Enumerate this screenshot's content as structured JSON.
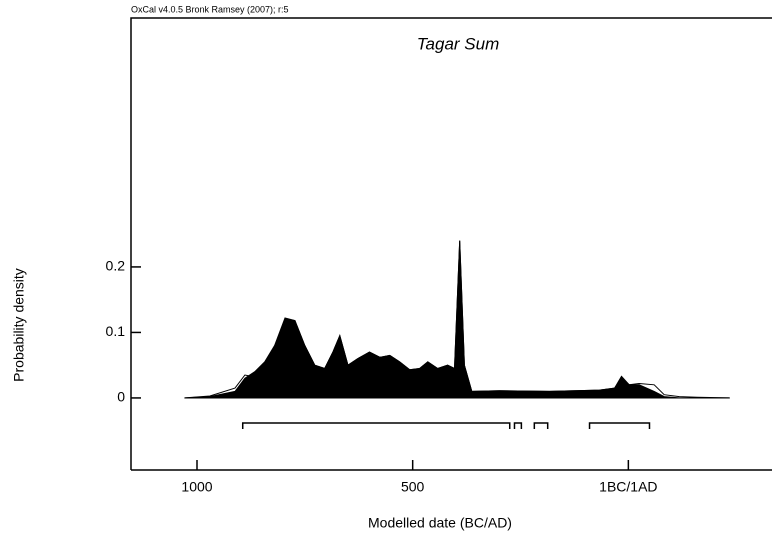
{
  "chart_data": {
    "type": "area",
    "header": "OxCal v4.0.5 Bronk Ramsey (2007); r:5",
    "title": "Tagar Sum",
    "x_label": "Modelled date (BC/AD)",
    "y_label": "Probability density",
    "x": [
      1028,
      970,
      912,
      889,
      866,
      843,
      820,
      796,
      773,
      750,
      727,
      704,
      685,
      669,
      650,
      627,
      600,
      576,
      553,
      530,
      507,
      484,
      465,
      442,
      419,
      403,
      391,
      380,
      363,
      299,
      183,
      67,
      32,
      16,
      -2,
      -25,
      -60,
      -83,
      -118,
      -160,
      -234
    ],
    "series": [
      {
        "style": "outline",
        "color": "#000000",
        "values": [
          0,
          0.003,
          0.015,
          0.035,
          0.032,
          0.05,
          0.078,
          0.12,
          0.118,
          0.08,
          0.05,
          0.045,
          0.07,
          0.095,
          0.05,
          0.06,
          0.07,
          0.062,
          0.065,
          0.055,
          0.043,
          0.045,
          0.055,
          0.045,
          0.05,
          0.045,
          0.24,
          0.05,
          0.01,
          0.011,
          0.01,
          0.012,
          0.015,
          0.03,
          0.02,
          0.022,
          0.02,
          0.005,
          0.002,
          0.001,
          0
        ]
      },
      {
        "style": "filled",
        "color": "#000000",
        "values": [
          0,
          0.002,
          0.01,
          0.03,
          0.04,
          0.055,
          0.08,
          0.122,
          0.118,
          0.08,
          0.05,
          0.045,
          0.07,
          0.095,
          0.05,
          0.06,
          0.07,
          0.062,
          0.065,
          0.055,
          0.043,
          0.045,
          0.055,
          0.045,
          0.05,
          0.045,
          0.24,
          0.05,
          0.01,
          0.011,
          0.01,
          0.012,
          0.015,
          0.033,
          0.02,
          0.02,
          0.01,
          0.002,
          0,
          0,
          0
        ]
      }
    ],
    "ranges": [
      [
        894,
        275
      ],
      [
        264,
        248
      ],
      [
        218,
        187
      ],
      [
        90,
        -49
      ]
    ],
    "xlim": [
      1153,
      -333
    ],
    "xticks": [
      1000,
      500,
      {
        "value": 0,
        "label": "1BC/1AD"
      }
    ],
    "ylim": [
      -0.11,
      0.58
    ],
    "yticks": [
      0,
      0.1,
      0.2
    ]
  }
}
